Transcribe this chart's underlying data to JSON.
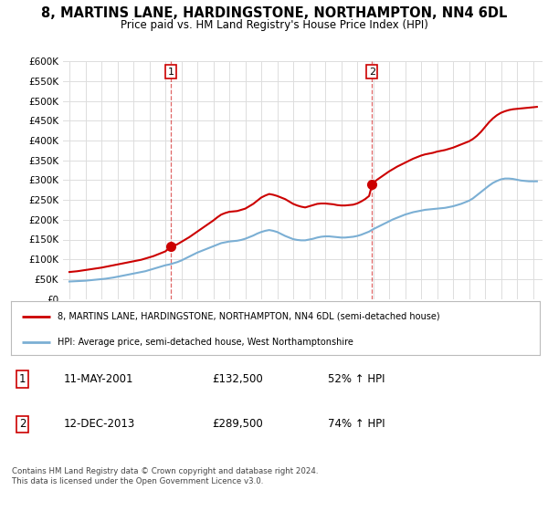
{
  "title": "8, MARTINS LANE, HARDINGSTONE, NORTHAMPTON, NN4 6DL",
  "subtitle": "Price paid vs. HM Land Registry's House Price Index (HPI)",
  "title_fontsize": 10.5,
  "subtitle_fontsize": 8.5,
  "ylim": [
    0,
    600000
  ],
  "yticks": [
    0,
    50000,
    100000,
    150000,
    200000,
    250000,
    300000,
    350000,
    400000,
    450000,
    500000,
    550000,
    600000
  ],
  "ytick_labels": [
    "£0",
    "£50K",
    "£100K",
    "£150K",
    "£200K",
    "£250K",
    "£300K",
    "£350K",
    "£400K",
    "£450K",
    "£500K",
    "£550K",
    "£600K"
  ],
  "xlim_start": 1994.6,
  "xlim_end": 2024.6,
  "transactions": [
    {
      "label": "1",
      "date_str": "11-MAY-2001",
      "year": 2001.36,
      "price": 132500
    },
    {
      "label": "2",
      "date_str": "12-DEC-2013",
      "year": 2013.94,
      "price": 289500
    }
  ],
  "legend_line1": "8, MARTINS LANE, HARDINGSTONE, NORTHAMPTON, NN4 6DL (semi-detached house)",
  "legend_line2": "HPI: Average price, semi-detached house, West Northamptonshire",
  "annotation_rows": [
    {
      "num": "1",
      "date": "11-MAY-2001",
      "price": "£132,500",
      "change": "52% ↑ HPI"
    },
    {
      "num": "2",
      "date": "12-DEC-2013",
      "price": "£289,500",
      "change": "74% ↑ HPI"
    }
  ],
  "footnote": "Contains HM Land Registry data © Crown copyright and database right 2024.\nThis data is licensed under the Open Government Licence v3.0.",
  "property_color": "#cc0000",
  "hpi_color": "#7bafd4",
  "vline_color": "#cc0000",
  "background_color": "#ffffff",
  "grid_color": "#dddddd",
  "property_years": [
    1995.0,
    1995.25,
    1995.5,
    1995.75,
    1996.0,
    1996.25,
    1996.5,
    1996.75,
    1997.0,
    1997.25,
    1997.5,
    1997.75,
    1998.0,
    1998.25,
    1998.5,
    1998.75,
    1999.0,
    1999.25,
    1999.5,
    1999.75,
    2000.0,
    2000.25,
    2000.5,
    2000.75,
    2001.0,
    2001.36,
    2001.5,
    2001.75,
    2002.0,
    2002.25,
    2002.5,
    2002.75,
    2003.0,
    2003.25,
    2003.5,
    2003.75,
    2004.0,
    2004.25,
    2004.5,
    2004.75,
    2005.0,
    2005.25,
    2005.5,
    2005.75,
    2006.0,
    2006.25,
    2006.5,
    2006.75,
    2007.0,
    2007.25,
    2007.5,
    2007.75,
    2008.0,
    2008.25,
    2008.5,
    2008.75,
    2009.0,
    2009.25,
    2009.5,
    2009.75,
    2010.0,
    2010.25,
    2010.5,
    2010.75,
    2011.0,
    2011.25,
    2011.5,
    2011.75,
    2012.0,
    2012.25,
    2012.5,
    2012.75,
    2013.0,
    2013.25,
    2013.5,
    2013.75,
    2013.94,
    2014.0,
    2014.25,
    2014.5,
    2014.75,
    2015.0,
    2015.25,
    2015.5,
    2015.75,
    2016.0,
    2016.25,
    2016.5,
    2016.75,
    2017.0,
    2017.25,
    2017.5,
    2017.75,
    2018.0,
    2018.25,
    2018.5,
    2018.75,
    2019.0,
    2019.25,
    2019.5,
    2019.75,
    2020.0,
    2020.25,
    2020.5,
    2020.75,
    2021.0,
    2021.25,
    2021.5,
    2021.75,
    2022.0,
    2022.25,
    2022.5,
    2022.75,
    2023.0,
    2023.25,
    2023.5,
    2023.75,
    2024.0,
    2024.25
  ],
  "property_values": [
    68000,
    69000,
    70000,
    71500,
    73000,
    74500,
    76000,
    77500,
    79000,
    81000,
    83000,
    85000,
    87000,
    89000,
    91000,
    93000,
    95000,
    97000,
    99000,
    102000,
    105000,
    108000,
    112000,
    116000,
    120000,
    132500,
    134000,
    138000,
    144000,
    150000,
    156000,
    163000,
    170000,
    177000,
    184000,
    191000,
    198000,
    206000,
    213000,
    217000,
    220000,
    221000,
    222000,
    225000,
    228000,
    234000,
    240000,
    248000,
    256000,
    261000,
    265000,
    263000,
    260000,
    256000,
    252000,
    246000,
    240000,
    236000,
    233000,
    231000,
    234000,
    237000,
    240000,
    241000,
    241000,
    240000,
    239000,
    237000,
    236000,
    236000,
    237000,
    238000,
    241000,
    246000,
    252000,
    260000,
    289500,
    293000,
    301000,
    308000,
    315000,
    322000,
    328000,
    334000,
    339000,
    344000,
    349000,
    354000,
    358000,
    362000,
    365000,
    367000,
    369000,
    372000,
    374000,
    376000,
    379000,
    382000,
    386000,
    390000,
    394000,
    398000,
    404000,
    412000,
    422000,
    434000,
    446000,
    456000,
    464000,
    470000,
    474000,
    477000,
    479000,
    480000,
    481000,
    482000,
    483000,
    484000,
    485000
  ],
  "hpi_years": [
    1995.0,
    1995.25,
    1995.5,
    1995.75,
    1996.0,
    1996.25,
    1996.5,
    1996.75,
    1997.0,
    1997.25,
    1997.5,
    1997.75,
    1998.0,
    1998.25,
    1998.5,
    1998.75,
    1999.0,
    1999.25,
    1999.5,
    1999.75,
    2000.0,
    2000.25,
    2000.5,
    2000.75,
    2001.0,
    2001.25,
    2001.5,
    2001.75,
    2002.0,
    2002.25,
    2002.5,
    2002.75,
    2003.0,
    2003.25,
    2003.5,
    2003.75,
    2004.0,
    2004.25,
    2004.5,
    2004.75,
    2005.0,
    2005.25,
    2005.5,
    2005.75,
    2006.0,
    2006.25,
    2006.5,
    2006.75,
    2007.0,
    2007.25,
    2007.5,
    2007.75,
    2008.0,
    2008.25,
    2008.5,
    2008.75,
    2009.0,
    2009.25,
    2009.5,
    2009.75,
    2010.0,
    2010.25,
    2010.5,
    2010.75,
    2011.0,
    2011.25,
    2011.5,
    2011.75,
    2012.0,
    2012.25,
    2012.5,
    2012.75,
    2013.0,
    2013.25,
    2013.5,
    2013.75,
    2014.0,
    2014.25,
    2014.5,
    2014.75,
    2015.0,
    2015.25,
    2015.5,
    2015.75,
    2016.0,
    2016.25,
    2016.5,
    2016.75,
    2017.0,
    2017.25,
    2017.5,
    2017.75,
    2018.0,
    2018.25,
    2018.5,
    2018.75,
    2019.0,
    2019.25,
    2019.5,
    2019.75,
    2020.0,
    2020.25,
    2020.5,
    2020.75,
    2021.0,
    2021.25,
    2021.5,
    2021.75,
    2022.0,
    2022.25,
    2022.5,
    2022.75,
    2023.0,
    2023.25,
    2023.5,
    2023.75,
    2024.0,
    2024.25
  ],
  "hpi_values": [
    44000,
    44500,
    45000,
    45500,
    46000,
    47000,
    48000,
    49000,
    50000,
    51000,
    52500,
    54000,
    56000,
    58000,
    60000,
    62000,
    64000,
    66000,
    68000,
    70000,
    73000,
    76000,
    79000,
    82000,
    85000,
    87000,
    90000,
    93000,
    97000,
    102000,
    107000,
    112000,
    117000,
    121000,
    125000,
    129000,
    133000,
    137000,
    141000,
    143000,
    145000,
    146000,
    147000,
    149000,
    152000,
    156000,
    160000,
    165000,
    169000,
    172000,
    174000,
    172000,
    169000,
    164000,
    159000,
    155000,
    151000,
    149000,
    148000,
    148000,
    150000,
    152000,
    155000,
    157000,
    158000,
    158000,
    157000,
    156000,
    155000,
    155000,
    156000,
    157000,
    159000,
    162000,
    166000,
    170000,
    176000,
    181000,
    186000,
    191000,
    196000,
    201000,
    205000,
    209000,
    213000,
    216000,
    219000,
    221000,
    223000,
    225000,
    226000,
    227000,
    228000,
    229000,
    230000,
    232000,
    234000,
    237000,
    240000,
    244000,
    248000,
    254000,
    262000,
    270000,
    278000,
    286000,
    293000,
    298000,
    302000,
    304000,
    304000,
    303000,
    301000,
    299000,
    298000,
    297000,
    297000,
    297000
  ]
}
